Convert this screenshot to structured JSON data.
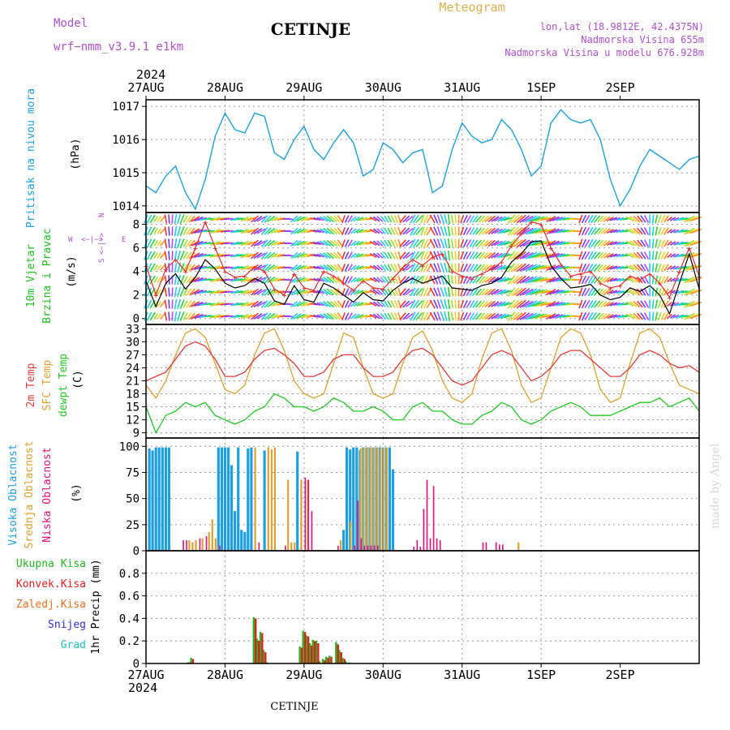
{
  "header": {
    "model_label": "Model",
    "model_name": "wrf−nmm_v3.9.1  e1km",
    "station": "CETINJE",
    "meteogram": "Meteogram",
    "lonlat": "lon,lat (18.9812E, 42.4375N)",
    "elevation": "Nadmorska Visina 655m",
    "model_elevation": "Nadmorska Visina u modelu 676.928m",
    "year": "2024",
    "footer_station": "CETINJE",
    "watermark": "made by Angel"
  },
  "colors": {
    "pressure": "#1ea0e0",
    "wind_label": "#22c022",
    "temp2m": "#e03c3c",
    "sfc": "#e0a030",
    "dewpt": "#22c822",
    "cloud_high": "#1ea0e0",
    "cloud_mid": "#e0a030",
    "cloud_low": "#e0107a",
    "purple": "#b050d0",
    "rain_total": "#22b822",
    "rain_conv": "#e02020",
    "rain_frozen": "#f07020",
    "snow": "#3030d0",
    "hail": "#20c0c0"
  },
  "chart_data": [
    {
      "type": "line",
      "panel": "pressure",
      "ylabel": "Pritisak na nivou mora",
      "units": "(hPa)",
      "ylim": [
        1013.8,
        1017.2
      ],
      "yticks": [
        1014,
        1015,
        1016,
        1017
      ],
      "x_unit": "hours since 27AUG 00UTC",
      "x": [
        0,
        3,
        6,
        9,
        12,
        15,
        18,
        21,
        24,
        27,
        30,
        33,
        36,
        39,
        42,
        45,
        48,
        51,
        54,
        57,
        60,
        63,
        66,
        69,
        72,
        75,
        78,
        81,
        84,
        87,
        90,
        93,
        96,
        99,
        102,
        105,
        108,
        111,
        114,
        117,
        120,
        123,
        126,
        129,
        132,
        135,
        138,
        141,
        144,
        147,
        150,
        153,
        156,
        159,
        162,
        165,
        168
      ],
      "values": [
        1014.6,
        1014.4,
        1014.9,
        1015.2,
        1014.4,
        1013.9,
        1014.8,
        1016.1,
        1016.8,
        1016.3,
        1016.2,
        1016.8,
        1016.7,
        1015.6,
        1015.4,
        1016.0,
        1016.4,
        1015.7,
        1015.4,
        1015.9,
        1016.3,
        1015.9,
        1014.9,
        1015.1,
        1015.9,
        1015.7,
        1015.3,
        1015.6,
        1015.7,
        1014.4,
        1014.6,
        1015.7,
        1016.5,
        1016.1,
        1015.9,
        1016.0,
        1016.6,
        1016.3,
        1015.7,
        1014.9,
        1015.2,
        1016.5,
        1016.9,
        1016.6,
        1016.5,
        1016.6,
        1016.0,
        1014.8,
        1014.0,
        1014.5,
        1015.2,
        1015.7,
        1015.5,
        1015.3,
        1015.1,
        1015.4,
        1015.5
      ]
    },
    {
      "type": "line",
      "panel": "wind",
      "ylabel": "10m Vjetar Brzina i Pravac",
      "units": "(m/s)",
      "compass": [
        "W",
        "<−|−>",
        "E",
        "S",
        "<−|−>",
        "N"
      ],
      "ylim": [
        -0.5,
        9.0
      ],
      "yticks": [
        0,
        2,
        4,
        6,
        8
      ],
      "x_unit": "hours since 27AUG 00UTC",
      "x": [
        0,
        3,
        6,
        9,
        12,
        15,
        18,
        21,
        24,
        27,
        30,
        33,
        36,
        39,
        42,
        45,
        48,
        51,
        54,
        57,
        60,
        63,
        66,
        69,
        72,
        75,
        78,
        81,
        84,
        87,
        90,
        93,
        96,
        99,
        102,
        105,
        108,
        111,
        114,
        117,
        120,
        123,
        126,
        129,
        132,
        135,
        138,
        141,
        144,
        147,
        150,
        153,
        156,
        159,
        162,
        165,
        168
      ],
      "series": [
        {
          "name": "speed",
          "values": [
            3.2,
            1.0,
            3.0,
            3.8,
            2.5,
            3.5,
            5.0,
            4.2,
            3.0,
            2.6,
            2.8,
            3.4,
            3.0,
            1.5,
            1.2,
            2.8,
            1.6,
            1.4,
            3.0,
            2.6,
            2.0,
            1.4,
            2.2,
            1.6,
            1.5,
            2.4,
            3.0,
            3.4,
            3.0,
            3.3,
            3.6,
            2.6,
            2.5,
            2.4,
            2.8,
            3.0,
            3.5,
            4.8,
            5.5,
            6.5,
            6.6,
            4.5,
            3.4,
            2.6,
            2.7,
            2.9,
            2.0,
            1.6,
            1.8,
            2.6,
            2.3,
            2.8,
            2.0,
            0.4,
            3.0,
            5.5,
            2.5
          ]
        },
        {
          "name": "gust",
          "values": [
            4.5,
            2.0,
            4.2,
            5.0,
            4.0,
            6.0,
            8.2,
            6.0,
            4.0,
            3.5,
            3.6,
            4.4,
            4.0,
            2.5,
            2.0,
            3.8,
            2.6,
            2.4,
            4.0,
            3.6,
            3.0,
            2.4,
            3.2,
            2.6,
            2.5,
            3.4,
            4.3,
            5.0,
            4.5,
            5.2,
            5.5,
            4.0,
            3.6,
            3.4,
            3.8,
            4.2,
            4.8,
            6.2,
            7.2,
            8.2,
            8.0,
            6.0,
            4.6,
            3.6,
            3.8,
            4.0,
            3.0,
            2.6,
            2.8,
            3.6,
            3.3,
            3.8,
            3.0,
            1.8,
            4.0,
            6.0,
            3.6
          ]
        }
      ],
      "direction_deg": [
        200,
        210,
        350,
        10,
        30,
        60,
        80,
        70,
        260,
        250,
        240,
        230,
        40,
        60,
        90,
        230,
        240,
        100,
        120,
        130,
        200,
        230,
        250,
        300,
        320,
        330,
        40,
        30,
        20,
        150,
        160,
        170,
        200,
        210,
        40,
        50,
        60,
        220,
        230,
        240,
        250,
        60,
        70,
        80,
        200,
        210,
        220,
        60,
        70,
        120,
        140,
        180,
        200,
        230,
        250,
        60,
        80
      ]
    },
    {
      "type": "line",
      "panel": "temperature",
      "ylabel_lines": [
        "2m Temp",
        "SFC Temp",
        "dewpt Temp"
      ],
      "units": "(C)",
      "ylim": [
        7.8,
        34.0
      ],
      "yticks": [
        9,
        12,
        15,
        18,
        21,
        24,
        27,
        30,
        33
      ],
      "x_unit": "hours since 27AUG 00UTC",
      "x": [
        0,
        3,
        6,
        9,
        12,
        15,
        18,
        21,
        24,
        27,
        30,
        33,
        36,
        39,
        42,
        45,
        48,
        51,
        54,
        57,
        60,
        63,
        66,
        69,
        72,
        75,
        78,
        81,
        84,
        87,
        90,
        93,
        96,
        99,
        102,
        105,
        108,
        111,
        114,
        117,
        120,
        123,
        126,
        129,
        132,
        135,
        138,
        141,
        144,
        147,
        150,
        153,
        156,
        159,
        162,
        165,
        168
      ],
      "series": [
        {
          "name": "2m Temp",
          "values": [
            21,
            22,
            23,
            26,
            29,
            30,
            29,
            26,
            22,
            22,
            23,
            26,
            28,
            28.5,
            27,
            25,
            22,
            22,
            23,
            26,
            27,
            27,
            24,
            22,
            22,
            23,
            26,
            28,
            28.5,
            27,
            24,
            21,
            20,
            21,
            24,
            27,
            28,
            27,
            24,
            21,
            22,
            24,
            27,
            28,
            28,
            26,
            24,
            22,
            22,
            24,
            27,
            28,
            27,
            25,
            24,
            24.5,
            23
          ]
        },
        {
          "name": "SFC Temp",
          "values": [
            20,
            17,
            21,
            27,
            32,
            33,
            31,
            25,
            19,
            18,
            20,
            27,
            32,
            33,
            28,
            21,
            18,
            17,
            18,
            25,
            32,
            31,
            24,
            18,
            17,
            18,
            25,
            31,
            32.5,
            28,
            21,
            17,
            16,
            18,
            26,
            32,
            33,
            28,
            20,
            16,
            17,
            24,
            31,
            33,
            32,
            27,
            19,
            16,
            17,
            25,
            32,
            33,
            31,
            25,
            20,
            19,
            18
          ]
        },
        {
          "name": "dewpt Temp",
          "values": [
            15,
            9,
            13,
            14,
            16,
            15,
            16,
            13,
            12,
            11,
            12,
            14,
            15,
            18,
            17,
            15,
            15,
            14,
            15,
            17,
            16,
            14,
            14,
            15,
            14,
            12,
            12,
            15,
            16,
            14,
            14,
            12,
            11,
            11,
            13,
            14,
            16,
            15,
            12,
            11,
            12,
            14,
            15,
            16,
            15,
            13,
            13,
            13,
            14,
            15,
            16,
            16,
            17,
            15,
            16,
            17,
            14
          ]
        }
      ]
    },
    {
      "type": "bar",
      "panel": "clouds",
      "ylabel_lines": [
        "Visoka Oblacnost",
        "Srednja Oblacnost",
        "Niska Oblacnost"
      ],
      "units": "(%)",
      "ylim": [
        0,
        100
      ],
      "yticks": [
        0,
        25,
        50,
        75,
        100
      ],
      "x_unit": "hours since 27AUG 00UTC",
      "series": [
        {
          "name": "Visoka Oblacnost",
          "x": [
            1,
            2,
            3,
            4,
            5,
            6,
            7,
            22,
            23,
            24,
            25,
            26,
            27,
            28,
            29,
            30,
            31,
            32,
            36,
            46,
            60,
            61,
            62,
            63,
            64,
            65,
            66,
            67,
            68,
            69,
            70,
            71,
            72,
            73,
            74,
            75
          ],
          "values": [
            98,
            96,
            99,
            99,
            99,
            99,
            99,
            99,
            99,
            99,
            99,
            82,
            38,
            99,
            20,
            18,
            98,
            99,
            96,
            95,
            20,
            99,
            97,
            99,
            99,
            96,
            99,
            99,
            99,
            99,
            99,
            99,
            99,
            99,
            99,
            78
          ]
        },
        {
          "name": "Srednja Oblacnost",
          "x": [
            13,
            14,
            15,
            17,
            19,
            20,
            21,
            33,
            37,
            38,
            39,
            43,
            44,
            45,
            47,
            49,
            59,
            62,
            65,
            66,
            67,
            68,
            69,
            70,
            71,
            72,
            73,
            113
          ],
          "values": [
            10,
            8,
            10,
            12,
            18,
            30,
            12,
            99,
            99,
            97,
            99,
            68,
            8,
            8,
            68,
            68,
            10,
            28,
            98,
            99,
            99,
            99,
            99,
            99,
            98,
            99,
            99,
            8
          ]
        },
        {
          "name": "Niska Oblacnost",
          "x": [
            11,
            12,
            16,
            18,
            22,
            34,
            42,
            48,
            49,
            50,
            58,
            63,
            64,
            65,
            66,
            67,
            68,
            69,
            70,
            81,
            82,
            83,
            84,
            85,
            86,
            87,
            88,
            89,
            102,
            103,
            106,
            107,
            108
          ],
          "values": [
            10,
            10,
            12,
            14,
            5,
            8,
            5,
            70,
            68,
            38,
            5,
            5,
            48,
            12,
            5,
            5,
            5,
            5,
            5,
            4,
            10,
            4,
            40,
            68,
            12,
            62,
            12,
            10,
            8,
            8,
            8,
            6,
            6
          ]
        }
      ]
    },
    {
      "type": "bar",
      "panel": "precipitation",
      "legend": [
        "Ukupna Kisa",
        "Konvek.Kisa",
        "Zaledj.Kisa",
        "Snijeg",
        "Grad"
      ],
      "ylabel": "1hr Precip (mm)",
      "ylim": [
        0,
        1.0
      ],
      "yticks": [
        0,
        0.2,
        0.4,
        0.6,
        0.8
      ],
      "x_unit": "hours since 27AUG 00UTC",
      "series": [
        {
          "name": "Ukupna Kisa",
          "x": [
            13,
            14,
            33,
            34,
            35,
            36,
            37,
            47,
            48,
            49,
            50,
            51,
            52,
            53,
            54,
            55,
            56,
            58,
            59,
            60,
            61,
            62
          ],
          "values": [
            0.01,
            0.05,
            0.41,
            0.22,
            0.28,
            0.12,
            0.01,
            0.15,
            0.29,
            0.25,
            0.18,
            0.21,
            0.2,
            0.02,
            0.04,
            0.06,
            0.07,
            0.19,
            0.12,
            0.05,
            0.02,
            0.01
          ]
        },
        {
          "name": "Konvek.Kisa",
          "x": [
            13,
            14,
            33,
            34,
            35,
            36,
            47,
            48,
            49,
            50,
            51,
            52,
            54,
            55,
            56,
            58,
            59,
            60
          ],
          "values": [
            0.01,
            0.04,
            0.4,
            0.2,
            0.27,
            0.1,
            0.14,
            0.28,
            0.24,
            0.16,
            0.2,
            0.18,
            0.03,
            0.05,
            0.06,
            0.17,
            0.1,
            0.04
          ]
        }
      ]
    }
  ],
  "x_axis": {
    "date_labels": [
      "27AUG",
      "28AUG",
      "29AUG",
      "30AUG",
      "31AUG",
      "1SEP",
      "2SEP"
    ]
  }
}
